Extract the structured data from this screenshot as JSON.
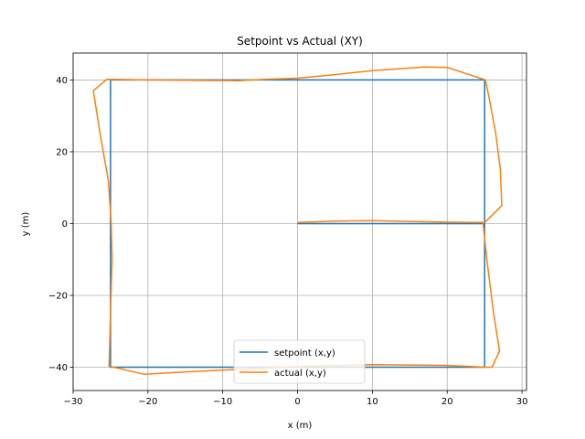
{
  "chart_data": {
    "type": "line",
    "title": "Setpoint vs Actual (XY)",
    "xlabel": "x (m)",
    "ylabel": "y (m)",
    "xlim": [
      -30,
      30.6
    ],
    "ylim": [
      -46.5,
      47.5
    ],
    "xticks": [
      -30,
      -20,
      -10,
      0,
      10,
      20,
      30
    ],
    "yticks": [
      -40,
      -20,
      0,
      20,
      40
    ],
    "grid": true,
    "legend_position": "lower center",
    "series": [
      {
        "name": "setpoint (x,y)",
        "color": "#1f77b4",
        "points": [
          [
            0,
            0
          ],
          [
            25,
            0
          ],
          [
            25,
            40
          ],
          [
            -25,
            40
          ],
          [
            -25,
            -40
          ],
          [
            25,
            -40
          ],
          [
            25,
            0
          ]
        ]
      },
      {
        "name": "actual (x,y)",
        "color": "#ff7f0e",
        "points": [
          [
            0,
            0.3
          ],
          [
            5,
            0.7
          ],
          [
            10,
            0.8
          ],
          [
            15,
            0.6
          ],
          [
            20,
            0.4
          ],
          [
            25,
            0.3
          ],
          [
            27.3,
            5
          ],
          [
            27.1,
            15
          ],
          [
            26.5,
            25
          ],
          [
            25.6,
            35
          ],
          [
            25.1,
            40
          ],
          [
            20,
            43.5
          ],
          [
            17,
            43.6
          ],
          [
            10,
            42.6
          ],
          [
            5,
            41.5
          ],
          [
            0,
            40.5
          ],
          [
            -5,
            40.1
          ],
          [
            -8,
            39.8
          ],
          [
            -15,
            39.9
          ],
          [
            -20,
            40
          ],
          [
            -25.5,
            40.2
          ],
          [
            -27.3,
            37
          ],
          [
            -26.4,
            25
          ],
          [
            -25.3,
            12
          ],
          [
            -24.9,
            0
          ],
          [
            -24.8,
            -10
          ],
          [
            -25,
            -25
          ],
          [
            -25.2,
            -39.7
          ],
          [
            -20.5,
            -42
          ],
          [
            -15,
            -41.3
          ],
          [
            -5,
            -40.3
          ],
          [
            0,
            -39.8
          ],
          [
            10,
            -39.3
          ],
          [
            20,
            -39.5
          ],
          [
            25,
            -40
          ],
          [
            26,
            -40
          ],
          [
            27,
            -35.5
          ],
          [
            26.2,
            -25
          ],
          [
            25.3,
            -10
          ],
          [
            24.8,
            0.2
          ]
        ]
      }
    ]
  }
}
